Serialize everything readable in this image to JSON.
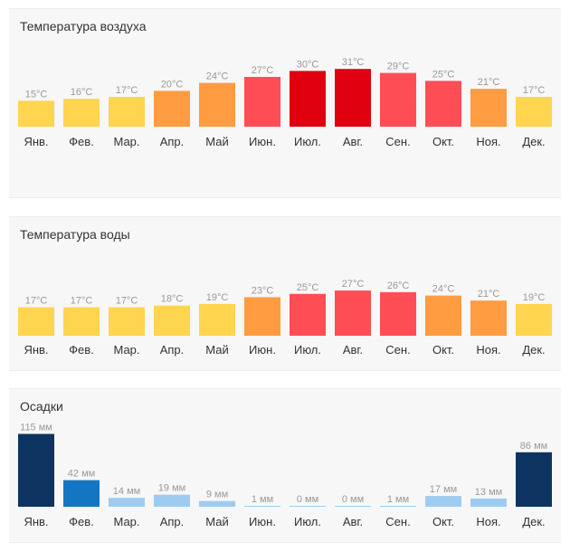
{
  "months": [
    "Янв.",
    "Фев.",
    "Мар.",
    "Апр.",
    "Май",
    "Июн.",
    "Июл.",
    "Авг.",
    "Сен.",
    "Окт.",
    "Ноя.",
    "Дек."
  ],
  "chart_data": [
    {
      "type": "bar",
      "title": "Температура воздуха",
      "unit": "°C",
      "categories": [
        "Янв.",
        "Фев.",
        "Мар.",
        "Апр.",
        "Май",
        "Июн.",
        "Июл.",
        "Авг.",
        "Сен.",
        "Окт.",
        "Ноя.",
        "Дек."
      ],
      "values": [
        15,
        16,
        17,
        20,
        24,
        27,
        30,
        31,
        29,
        25,
        21,
        17
      ],
      "value_labels": [
        "15°C",
        "16°C",
        "17°C",
        "20°C",
        "24°C",
        "27°C",
        "30°C",
        "31°C",
        "29°C",
        "25°C",
        "21°C",
        "17°C"
      ],
      "colors": [
        "#ffd44f",
        "#ffd44f",
        "#ffd44f",
        "#ff9b40",
        "#ff9b40",
        "#ff4d55",
        "#e0000f",
        "#e0000f",
        "#ff4d55",
        "#ff4d55",
        "#ff9b40",
        "#ffd44f"
      ],
      "grid": false
    },
    {
      "type": "bar",
      "title": "Температура воды",
      "unit": "°C",
      "categories": [
        "Янв.",
        "Фев.",
        "Мар.",
        "Апр.",
        "Май",
        "Июн.",
        "Июл.",
        "Авг.",
        "Сен.",
        "Окт.",
        "Ноя.",
        "Дек."
      ],
      "values": [
        17,
        17,
        17,
        18,
        19,
        23,
        25,
        27,
        26,
        24,
        21,
        19
      ],
      "value_labels": [
        "17°C",
        "17°C",
        "17°C",
        "18°C",
        "19°C",
        "23°C",
        "25°C",
        "27°C",
        "26°C",
        "24°C",
        "21°C",
        "19°C"
      ],
      "colors": [
        "#ffd44f",
        "#ffd44f",
        "#ffd44f",
        "#ffd44f",
        "#ffd44f",
        "#ff9b40",
        "#ff4d55",
        "#ff4d55",
        "#ff4d55",
        "#ff9b40",
        "#ff9b40",
        "#ffd44f"
      ],
      "grid": false
    },
    {
      "type": "bar",
      "title": "Осадки",
      "unit": "мм",
      "categories": [
        "Янв.",
        "Фев.",
        "Мар.",
        "Апр.",
        "Май",
        "Июн.",
        "Июл.",
        "Авг.",
        "Сен.",
        "Окт.",
        "Ноя.",
        "Дек."
      ],
      "values": [
        115,
        42,
        14,
        19,
        9,
        1,
        0,
        0,
        1,
        17,
        13,
        86
      ],
      "value_labels": [
        "115 мм",
        "42 мм",
        "14 мм",
        "19 мм",
        "9 мм",
        "1 мм",
        "0 мм",
        "0 мм",
        "1 мм",
        "17 мм",
        "13 мм",
        "86 мм"
      ],
      "colors": [
        "#0d3461",
        "#1475c2",
        "#9dccf0",
        "#9dccf0",
        "#9dccf0",
        "#9dccf0",
        "#9dccf0",
        "#9dccf0",
        "#9dccf0",
        "#9dccf0",
        "#9dccf0",
        "#0d3461"
      ],
      "grid": false
    }
  ]
}
